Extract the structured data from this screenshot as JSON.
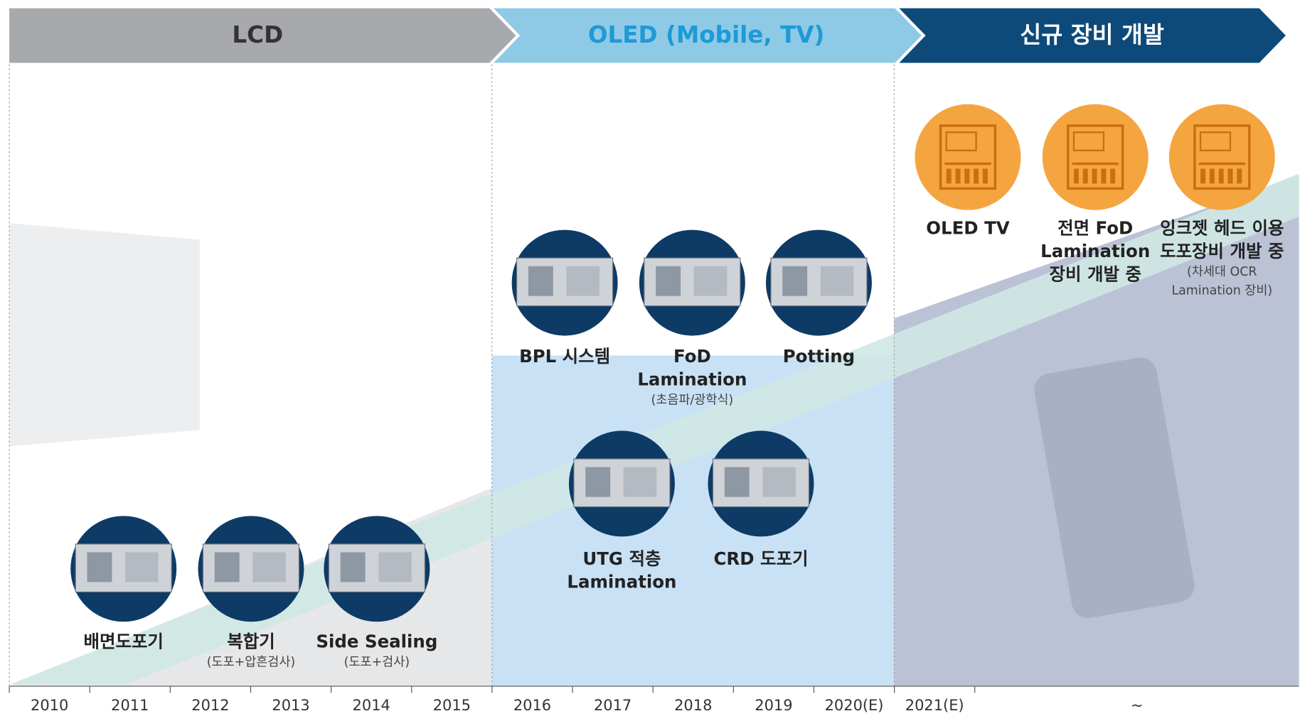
{
  "phases": [
    {
      "title": "LCD"
    },
    {
      "title": "OLED (Mobile, TV)"
    },
    {
      "title": "신규 장비 개발"
    }
  ],
  "items": [
    {
      "lines": [
        "배면도포기"
      ],
      "sub": []
    },
    {
      "lines": [
        "복합기"
      ],
      "sub": [
        "(도포+압흔검사)"
      ]
    },
    {
      "lines": [
        "Side Sealing"
      ],
      "sub": [
        "(도포+검사)"
      ]
    },
    {
      "lines": [
        "BPL 시스템"
      ],
      "sub": []
    },
    {
      "lines": [
        "FoD",
        "Lamination"
      ],
      "sub": [
        "(초음파/광학식)"
      ]
    },
    {
      "lines": [
        "Potting"
      ],
      "sub": []
    },
    {
      "lines": [
        "UTG 적층",
        "Lamination"
      ],
      "sub": []
    },
    {
      "lines": [
        "CRD 도포기"
      ],
      "sub": []
    },
    {
      "lines": [
        "OLED TV"
      ],
      "sub": []
    },
    {
      "lines": [
        "전면 FoD",
        "Lamination",
        "장비 개발 중"
      ],
      "sub": []
    },
    {
      "lines": [
        "잉크젯 헤드 이용",
        "도포장비 개발 중"
      ],
      "sub": [
        "(차세대 OCR",
        "Lamination 장비)"
      ]
    }
  ],
  "years": [
    "2010",
    "2011",
    "2012",
    "2013",
    "2014",
    "2015",
    "2016",
    "2017",
    "2018",
    "2019",
    "2020(E)",
    "2021(E)",
    "~"
  ]
}
